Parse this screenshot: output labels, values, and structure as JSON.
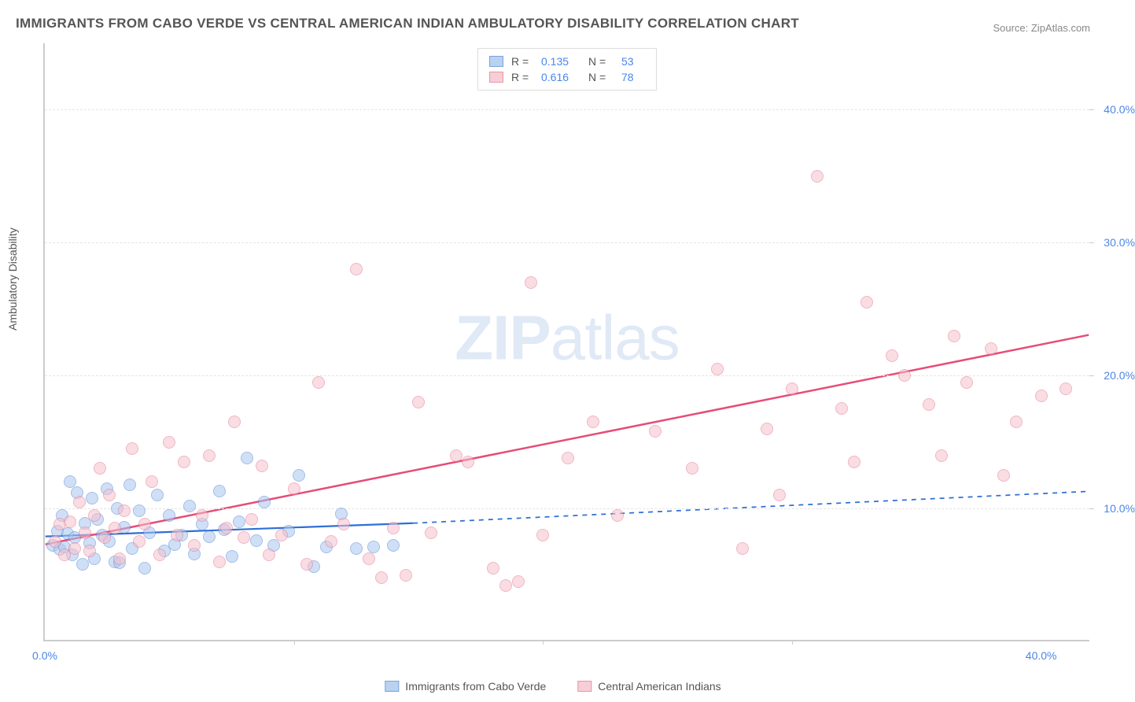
{
  "title": "IMMIGRANTS FROM CABO VERDE VS CENTRAL AMERICAN INDIAN AMBULATORY DISABILITY CORRELATION CHART",
  "source_label": "Source: ZipAtlas.com",
  "ylabel": "Ambulatory Disability",
  "watermark_bold": "ZIP",
  "watermark_rest": "atlas",
  "chart": {
    "type": "scatter",
    "xlim": [
      0,
      42
    ],
    "ylim": [
      0,
      45
    ],
    "xtick_labels": [
      {
        "v": 0,
        "label": "0.0%"
      },
      {
        "v": 40,
        "label": "40.0%"
      }
    ],
    "ytick_labels": [
      {
        "v": 10,
        "label": "10.0%"
      },
      {
        "v": 20,
        "label": "20.0%"
      },
      {
        "v": 30,
        "label": "30.0%"
      },
      {
        "v": 40,
        "label": "40.0%"
      }
    ],
    "xticks_minor": [
      10,
      20,
      30
    ],
    "grid_color": "#e5e5e5",
    "background_color": "#ffffff",
    "axis_color": "#cccccc",
    "marker_radius": 8,
    "marker_border_width": 1.2,
    "series": [
      {
        "name": "Immigrants from Cabo Verde",
        "fill": "#a9c7f0",
        "stroke": "#5b8ad6",
        "fill_opacity": 0.55,
        "R": "0.135",
        "N": "53",
        "trend": {
          "x1": 0,
          "y1": 7.8,
          "x2_solid": 14.8,
          "y2_solid": 8.8,
          "x2_dash": 42,
          "y2_dash": 11.2,
          "stroke": "#2f6fd6",
          "width": 2.2,
          "dash": "6,6"
        },
        "points": [
          [
            0.3,
            7.2
          ],
          [
            0.5,
            8.3
          ],
          [
            0.6,
            6.9
          ],
          [
            0.7,
            9.5
          ],
          [
            0.8,
            7.1
          ],
          [
            0.9,
            8.1
          ],
          [
            1.0,
            12.0
          ],
          [
            1.1,
            6.5
          ],
          [
            1.2,
            7.8
          ],
          [
            1.3,
            11.2
          ],
          [
            1.5,
            5.8
          ],
          [
            1.6,
            8.9
          ],
          [
            1.8,
            7.4
          ],
          [
            1.9,
            10.8
          ],
          [
            2.0,
            6.2
          ],
          [
            2.1,
            9.2
          ],
          [
            2.3,
            8.0
          ],
          [
            2.5,
            11.5
          ],
          [
            2.6,
            7.5
          ],
          [
            2.8,
            6.0
          ],
          [
            2.9,
            10.0
          ],
          [
            3.0,
            5.9
          ],
          [
            3.2,
            8.6
          ],
          [
            3.4,
            11.8
          ],
          [
            3.5,
            7.0
          ],
          [
            3.8,
            9.8
          ],
          [
            4.0,
            5.5
          ],
          [
            4.2,
            8.2
          ],
          [
            4.5,
            11.0
          ],
          [
            4.8,
            6.8
          ],
          [
            5.0,
            9.5
          ],
          [
            5.2,
            7.3
          ],
          [
            5.5,
            8.0
          ],
          [
            5.8,
            10.2
          ],
          [
            6.0,
            6.6
          ],
          [
            6.3,
            8.8
          ],
          [
            6.6,
            7.9
          ],
          [
            7.0,
            11.3
          ],
          [
            7.2,
            8.4
          ],
          [
            7.5,
            6.4
          ],
          [
            7.8,
            9.0
          ],
          [
            8.1,
            13.8
          ],
          [
            8.5,
            7.6
          ],
          [
            8.8,
            10.5
          ],
          [
            9.2,
            7.2
          ],
          [
            9.8,
            8.3
          ],
          [
            10.2,
            12.5
          ],
          [
            10.8,
            5.6
          ],
          [
            11.3,
            7.1
          ],
          [
            11.9,
            9.6
          ],
          [
            12.5,
            7.0
          ],
          [
            13.2,
            7.1
          ],
          [
            14.0,
            7.2
          ]
        ]
      },
      {
        "name": "Central American Indians",
        "fill": "#f5c2cd",
        "stroke": "#e87a94",
        "fill_opacity": 0.55,
        "R": "0.616",
        "N": "78",
        "trend": {
          "x1": 0,
          "y1": 7.2,
          "x2_solid": 42,
          "y2_solid": 23.0,
          "stroke": "#e64c78",
          "width": 2.5
        },
        "points": [
          [
            0.4,
            7.5
          ],
          [
            0.6,
            8.8
          ],
          [
            0.8,
            6.5
          ],
          [
            1.0,
            9.0
          ],
          [
            1.2,
            7.0
          ],
          [
            1.4,
            10.5
          ],
          [
            1.6,
            8.2
          ],
          [
            1.8,
            6.8
          ],
          [
            2.0,
            9.5
          ],
          [
            2.2,
            13.0
          ],
          [
            2.4,
            7.8
          ],
          [
            2.6,
            11.0
          ],
          [
            2.8,
            8.5
          ],
          [
            3.0,
            6.2
          ],
          [
            3.2,
            9.8
          ],
          [
            3.5,
            14.5
          ],
          [
            3.8,
            7.5
          ],
          [
            4.0,
            8.8
          ],
          [
            4.3,
            12.0
          ],
          [
            4.6,
            6.5
          ],
          [
            5.0,
            15.0
          ],
          [
            5.3,
            8.0
          ],
          [
            5.6,
            13.5
          ],
          [
            6.0,
            7.2
          ],
          [
            6.3,
            9.5
          ],
          [
            6.6,
            14.0
          ],
          [
            7.0,
            6.0
          ],
          [
            7.3,
            8.5
          ],
          [
            7.6,
            16.5
          ],
          [
            8.0,
            7.8
          ],
          [
            8.3,
            9.2
          ],
          [
            8.7,
            13.2
          ],
          [
            9.0,
            6.5
          ],
          [
            9.5,
            8.0
          ],
          [
            10.0,
            11.5
          ],
          [
            10.5,
            5.8
          ],
          [
            11.0,
            19.5
          ],
          [
            11.5,
            7.5
          ],
          [
            12.0,
            8.8
          ],
          [
            12.5,
            28.0
          ],
          [
            13.0,
            6.2
          ],
          [
            13.5,
            4.8
          ],
          [
            14.0,
            8.5
          ],
          [
            14.5,
            5.0
          ],
          [
            15.0,
            18.0
          ],
          [
            15.5,
            8.2
          ],
          [
            16.5,
            14.0
          ],
          [
            17.0,
            13.5
          ],
          [
            18.0,
            5.5
          ],
          [
            18.5,
            4.2
          ],
          [
            19.0,
            4.5
          ],
          [
            19.5,
            27.0
          ],
          [
            20.0,
            8.0
          ],
          [
            21.0,
            13.8
          ],
          [
            22.0,
            16.5
          ],
          [
            23.0,
            9.5
          ],
          [
            24.5,
            15.8
          ],
          [
            26.0,
            13.0
          ],
          [
            27.0,
            20.5
          ],
          [
            28.0,
            7.0
          ],
          [
            29.0,
            16.0
          ],
          [
            30.0,
            19.0
          ],
          [
            31.0,
            35.0
          ],
          [
            32.0,
            17.5
          ],
          [
            33.0,
            25.5
          ],
          [
            34.0,
            21.5
          ],
          [
            34.5,
            20.0
          ],
          [
            35.5,
            17.8
          ],
          [
            36.0,
            14.0
          ],
          [
            37.0,
            19.5
          ],
          [
            38.0,
            22.0
          ],
          [
            39.0,
            16.5
          ],
          [
            40.0,
            18.5
          ],
          [
            41.0,
            19.0
          ],
          [
            38.5,
            12.5
          ],
          [
            36.5,
            23.0
          ],
          [
            29.5,
            11.0
          ],
          [
            32.5,
            13.5
          ]
        ]
      }
    ]
  },
  "legend_top": {
    "r_label": "R =",
    "n_label": "N ="
  },
  "colors": {
    "title_color": "#555555",
    "tick_label_color": "#4a86e8",
    "source_color": "#888888"
  }
}
